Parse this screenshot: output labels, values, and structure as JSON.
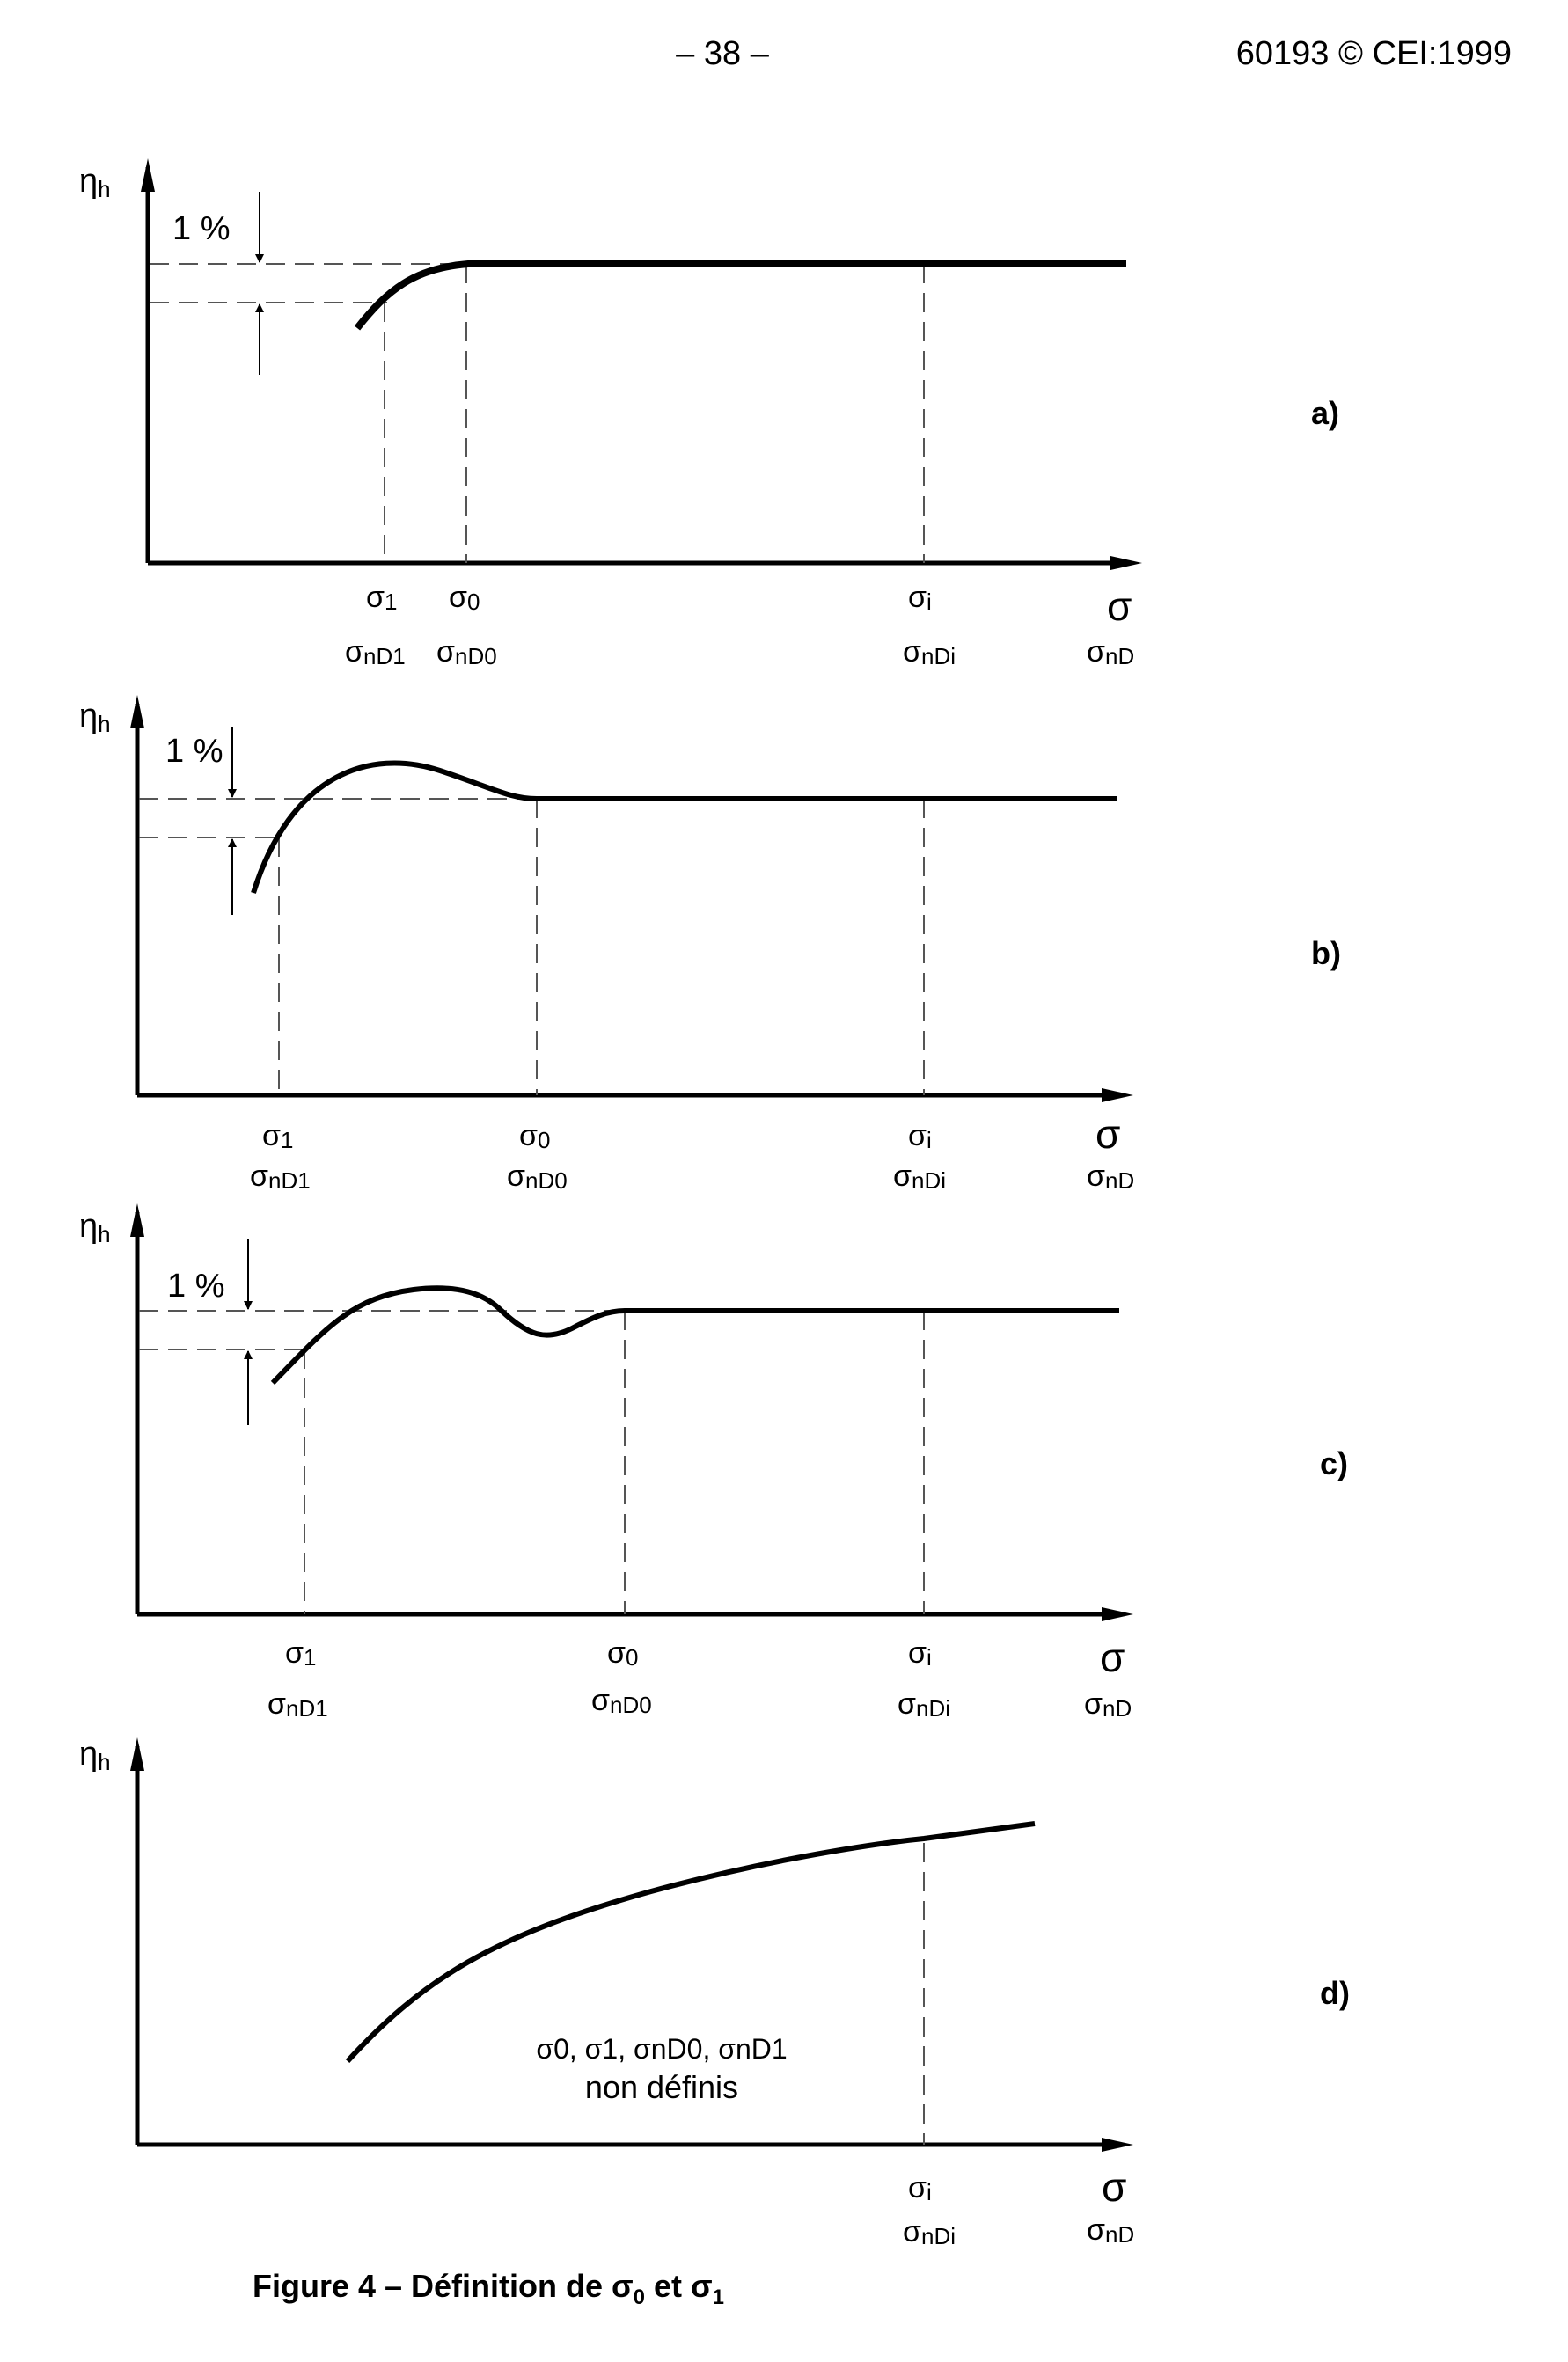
{
  "header": {
    "page_number": "– 38 –",
    "standard_ref": "60193 © CEI:1999"
  },
  "symbols": {
    "y_axis": "η",
    "y_axis_sub": "h",
    "x_axis": "σ",
    "x_axis_alt": "σ",
    "x_axis_alt_sub": "nD",
    "one_percent": "1 %",
    "s1": "σ",
    "s1_sub": "1",
    "s0": "σ",
    "s0_sub": "0",
    "si": "σ",
    "si_sub": "i",
    "snd1": "σ",
    "snd1_sub": "nD1",
    "snd0": "σ",
    "snd0_sub": "nD0",
    "sndi": "σ",
    "sndi_sub": "nDi"
  },
  "panels": [
    {
      "label": "a)"
    },
    {
      "label": "b)"
    },
    {
      "label": "c)"
    },
    {
      "label": "d)",
      "note_line1": "σ0, σ1, σnD0, σnD1",
      "note_line2": "non définis"
    }
  ],
  "caption": {
    "prefix": "Figure 4 – Définition de ",
    "s0": "σ",
    "s0_sub": "0",
    "middle": " et ",
    "s1": "σ",
    "s1_sub": "1"
  },
  "colors": {
    "ink": "#000000",
    "dash": "#555555"
  }
}
